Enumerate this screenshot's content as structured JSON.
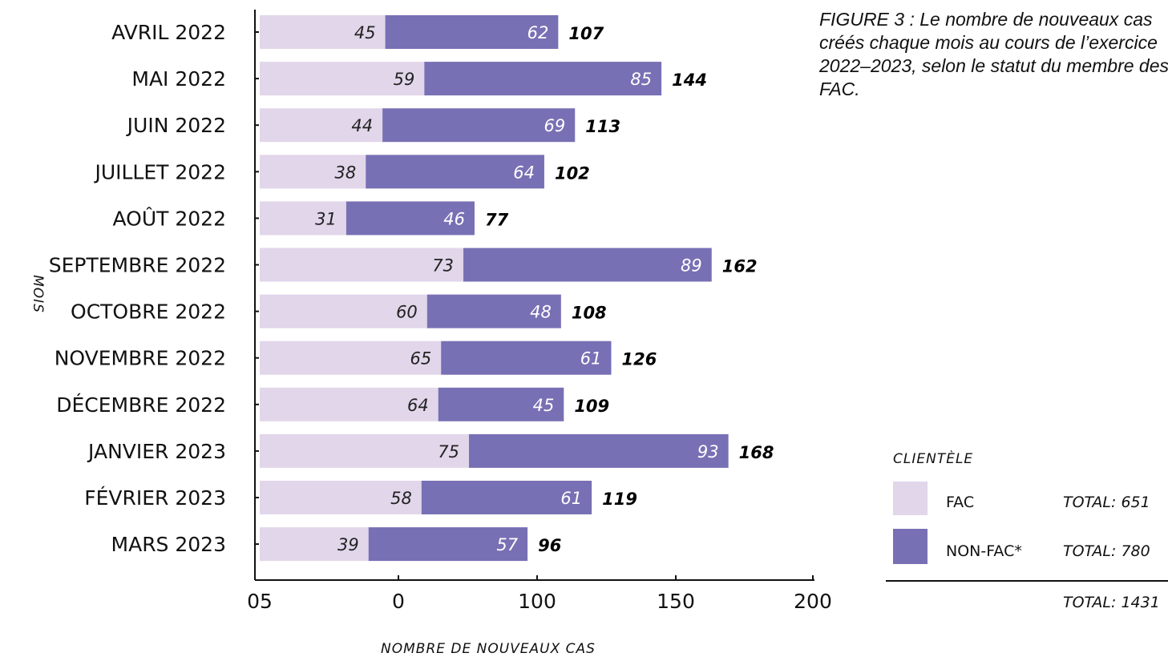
{
  "caption": "FIGURE 3 : Le nombre de nouveaux cas créés chaque mois au cours de l’exercice 2022–2023, selon le statut du membre des FAC.",
  "chart_data": {
    "type": "bar",
    "orientation": "horizontal",
    "stacked": true,
    "xlabel": "NOMBRE DE NOUVEAUX CAS",
    "ylabel": "MOIS",
    "categories": [
      "AVRIL 2022",
      "MAI 2022",
      "JUIN 2022",
      "JUILLET 2022",
      "AOÛT 2022",
      "SEPTEMBRE 2022",
      "OCTOBRE 2022",
      "NOVEMBRE 2022",
      "DÉCEMBRE 2022",
      "JANVIER 2023",
      "FÉVRIER 2023",
      "MARS 2023"
    ],
    "series": [
      {
        "name": "FAC",
        "color": "#e1d6ea",
        "label_color": "#222222",
        "values": [
          45,
          59,
          44,
          38,
          31,
          73,
          60,
          65,
          64,
          75,
          58,
          39
        ]
      },
      {
        "name": "NON-FAC*",
        "color": "#7870b4",
        "label_color": "#ffffff",
        "values": [
          62,
          85,
          69,
          64,
          46,
          89,
          48,
          61,
          45,
          93,
          61,
          57
        ]
      }
    ],
    "totals": [
      107,
      144,
      113,
      102,
      77,
      162,
      108,
      126,
      109,
      168,
      119,
      96
    ],
    "xticks": [
      "05",
      "0",
      "100",
      "150",
      "200"
    ],
    "xlim": [
      -50,
      200
    ],
    "legend": {
      "title": "CLIENTÈLE",
      "placement": "bottom-right",
      "entries": [
        {
          "label": "FAC",
          "total": "TOTAL: 651"
        },
        {
          "label": "NON-FAC*",
          "total": "TOTAL: 780"
        }
      ],
      "grand_total": "TOTAL: 1431"
    }
  }
}
